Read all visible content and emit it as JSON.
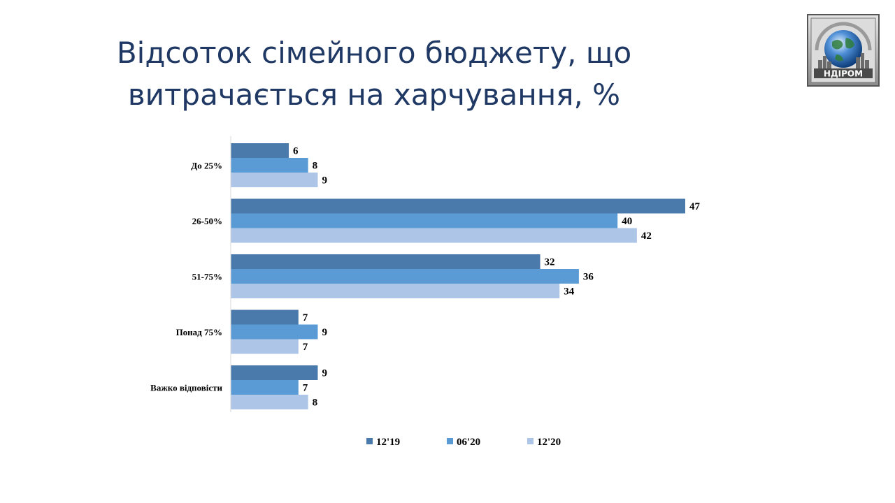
{
  "title_lines": [
    "Відсоток сімейного бюджету, що",
    "витрачається на харчування, %"
  ],
  "logo": {
    "text": "НДІРОМ"
  },
  "colors": {
    "s1": "#4a7aab",
    "s2": "#5b9bd5",
    "s3": "#adc5e7",
    "title": "#1f3864"
  },
  "chart_data": {
    "type": "bar",
    "orientation": "horizontal",
    "title": "Відсоток сімейного бюджету, що витрачається на харчування, %",
    "categories": [
      "До 25%",
      "26-50%",
      "51-75%",
      "Понад  75%",
      "Важко відповісти"
    ],
    "series": [
      {
        "name": "12'19",
        "values": [
          6,
          47,
          32,
          7,
          9
        ]
      },
      {
        "name": "06'20",
        "values": [
          8,
          40,
          36,
          9,
          7
        ]
      },
      {
        "name": "12'20",
        "values": [
          9,
          42,
          34,
          7,
          8
        ]
      }
    ],
    "xlim": [
      0,
      50
    ],
    "grid": false,
    "legend": "bottom"
  }
}
